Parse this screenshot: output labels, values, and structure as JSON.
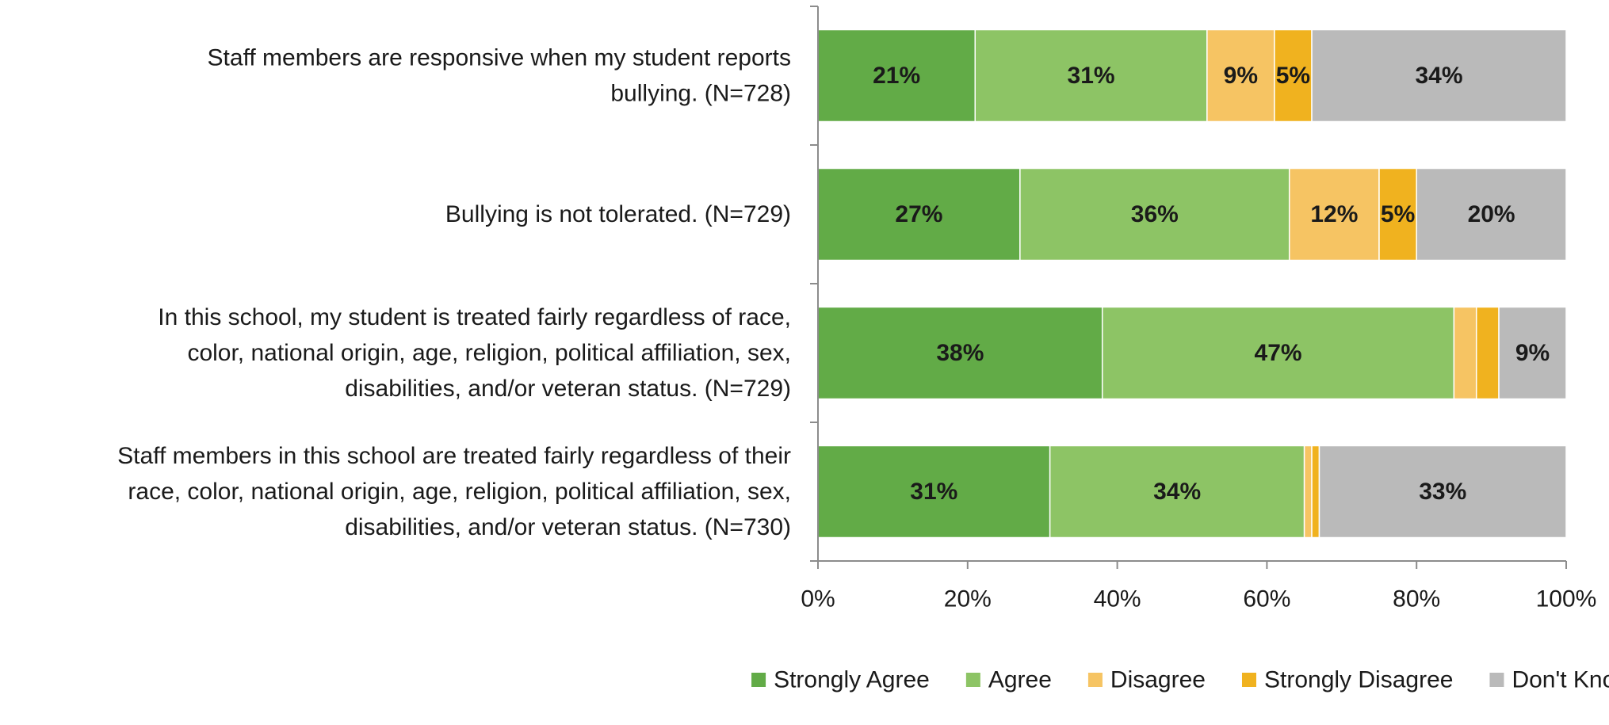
{
  "chart_data": {
    "type": "bar",
    "orientation": "horizontal",
    "stacked": true,
    "title": "",
    "xlabel": "",
    "ylabel": "",
    "xlim": [
      0,
      100
    ],
    "x_ticks": [
      "0%",
      "20%",
      "40%",
      "60%",
      "80%",
      "100%"
    ],
    "x_tick_values": [
      0,
      20,
      40,
      60,
      80,
      100
    ],
    "grid": false,
    "legend_position": "bottom",
    "categories": [
      "Staff members are responsive when my student reports bullying. (N=728)",
      "Bullying is not tolerated. (N=729)",
      "In this school, my student is treated fairly regardless of race, color, national origin, age, religion, political affiliation, sex, disabilities, and/or veteran status. (N=729)",
      "Staff members in this school are treated fairly regardless of their race, color, national origin, age, religion, political affiliation, sex, disabilities, and/or veteran status. (N=730)"
    ],
    "category_label_lines": [
      [
        "Staff members are responsive when my student reports",
        "bullying. (N=728)"
      ],
      [
        "Bullying is not tolerated. (N=729)"
      ],
      [
        "In this school, my student is treated fairly regardless of race,",
        "color, national origin, age, religion, political affiliation, sex,",
        "disabilities, and/or veteran status. (N=729)"
      ],
      [
        "Staff members in this school are treated fairly regardless of their",
        "race, color, national origin, age, religion, political affiliation, sex,",
        "disabilities, and/or veteran status. (N=730)"
      ]
    ],
    "series": [
      {
        "name": "Strongly Agree",
        "color": "#62ab47",
        "values": [
          21,
          27,
          38,
          31
        ],
        "labels": [
          "21%",
          "27%",
          "38%",
          "31%"
        ]
      },
      {
        "name": "Agree",
        "color": "#8dc465",
        "values": [
          31,
          36,
          47,
          34
        ],
        "labels": [
          "31%",
          "36%",
          "47%",
          "34%"
        ]
      },
      {
        "name": "Disagree",
        "color": "#f6c463",
        "values": [
          9,
          12,
          3,
          1
        ],
        "labels": [
          "9%",
          "12%",
          "",
          ""
        ]
      },
      {
        "name": "Strongly Disagree",
        "color": "#f0b21f",
        "values": [
          5,
          5,
          3,
          1
        ],
        "labels": [
          "5%",
          "5%",
          "",
          ""
        ]
      },
      {
        "name": "Don't Know",
        "color": "#bababa",
        "values": [
          34,
          20,
          9,
          33
        ],
        "labels": [
          "34%",
          "20%",
          "9%",
          "33%"
        ]
      }
    ]
  }
}
